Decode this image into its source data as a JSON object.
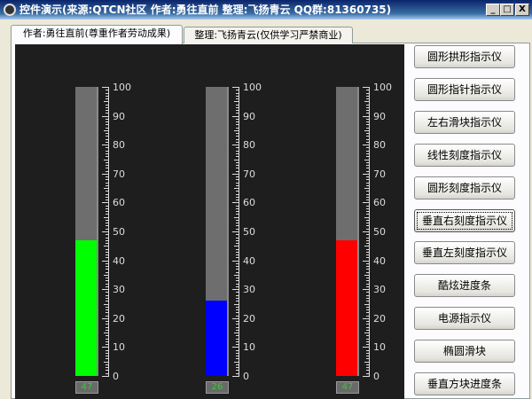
{
  "window": {
    "title": "控件演示(来源:QTCN社区 作者:勇往直前 整理:飞扬青云 QQ群:81360735)",
    "min": "_",
    "max": "□",
    "close": "X"
  },
  "tabs": [
    {
      "label": "作者:勇往直前(尊重作者劳动成果)",
      "active": true
    },
    {
      "label": "整理:飞扬青云(仅供学习严禁商业)",
      "active": false
    }
  ],
  "scale": {
    "min": 0,
    "max": 100,
    "labels": [
      "100",
      "90",
      "80",
      "70",
      "60",
      "50",
      "40",
      "30",
      "20",
      "10",
      "0"
    ]
  },
  "gauges": [
    {
      "value": 47,
      "label": "47",
      "color": "#00ff00"
    },
    {
      "value": 26,
      "label": "26",
      "color": "#0000ff"
    },
    {
      "value": 47,
      "label": "47",
      "color": "#ff0000"
    }
  ],
  "buttons": [
    "圆形拱形指示仪",
    "圆形指针指示仪",
    "左右滑块指示仪",
    "线性刻度指示仪",
    "圆形刻度指示仪",
    "垂直右刻度指示仪",
    "垂直左刻度指示仪",
    "酷炫进度条",
    "电源指示仪",
    "椭圆滑块",
    "垂直方块进度条"
  ],
  "focused_button": 5
}
